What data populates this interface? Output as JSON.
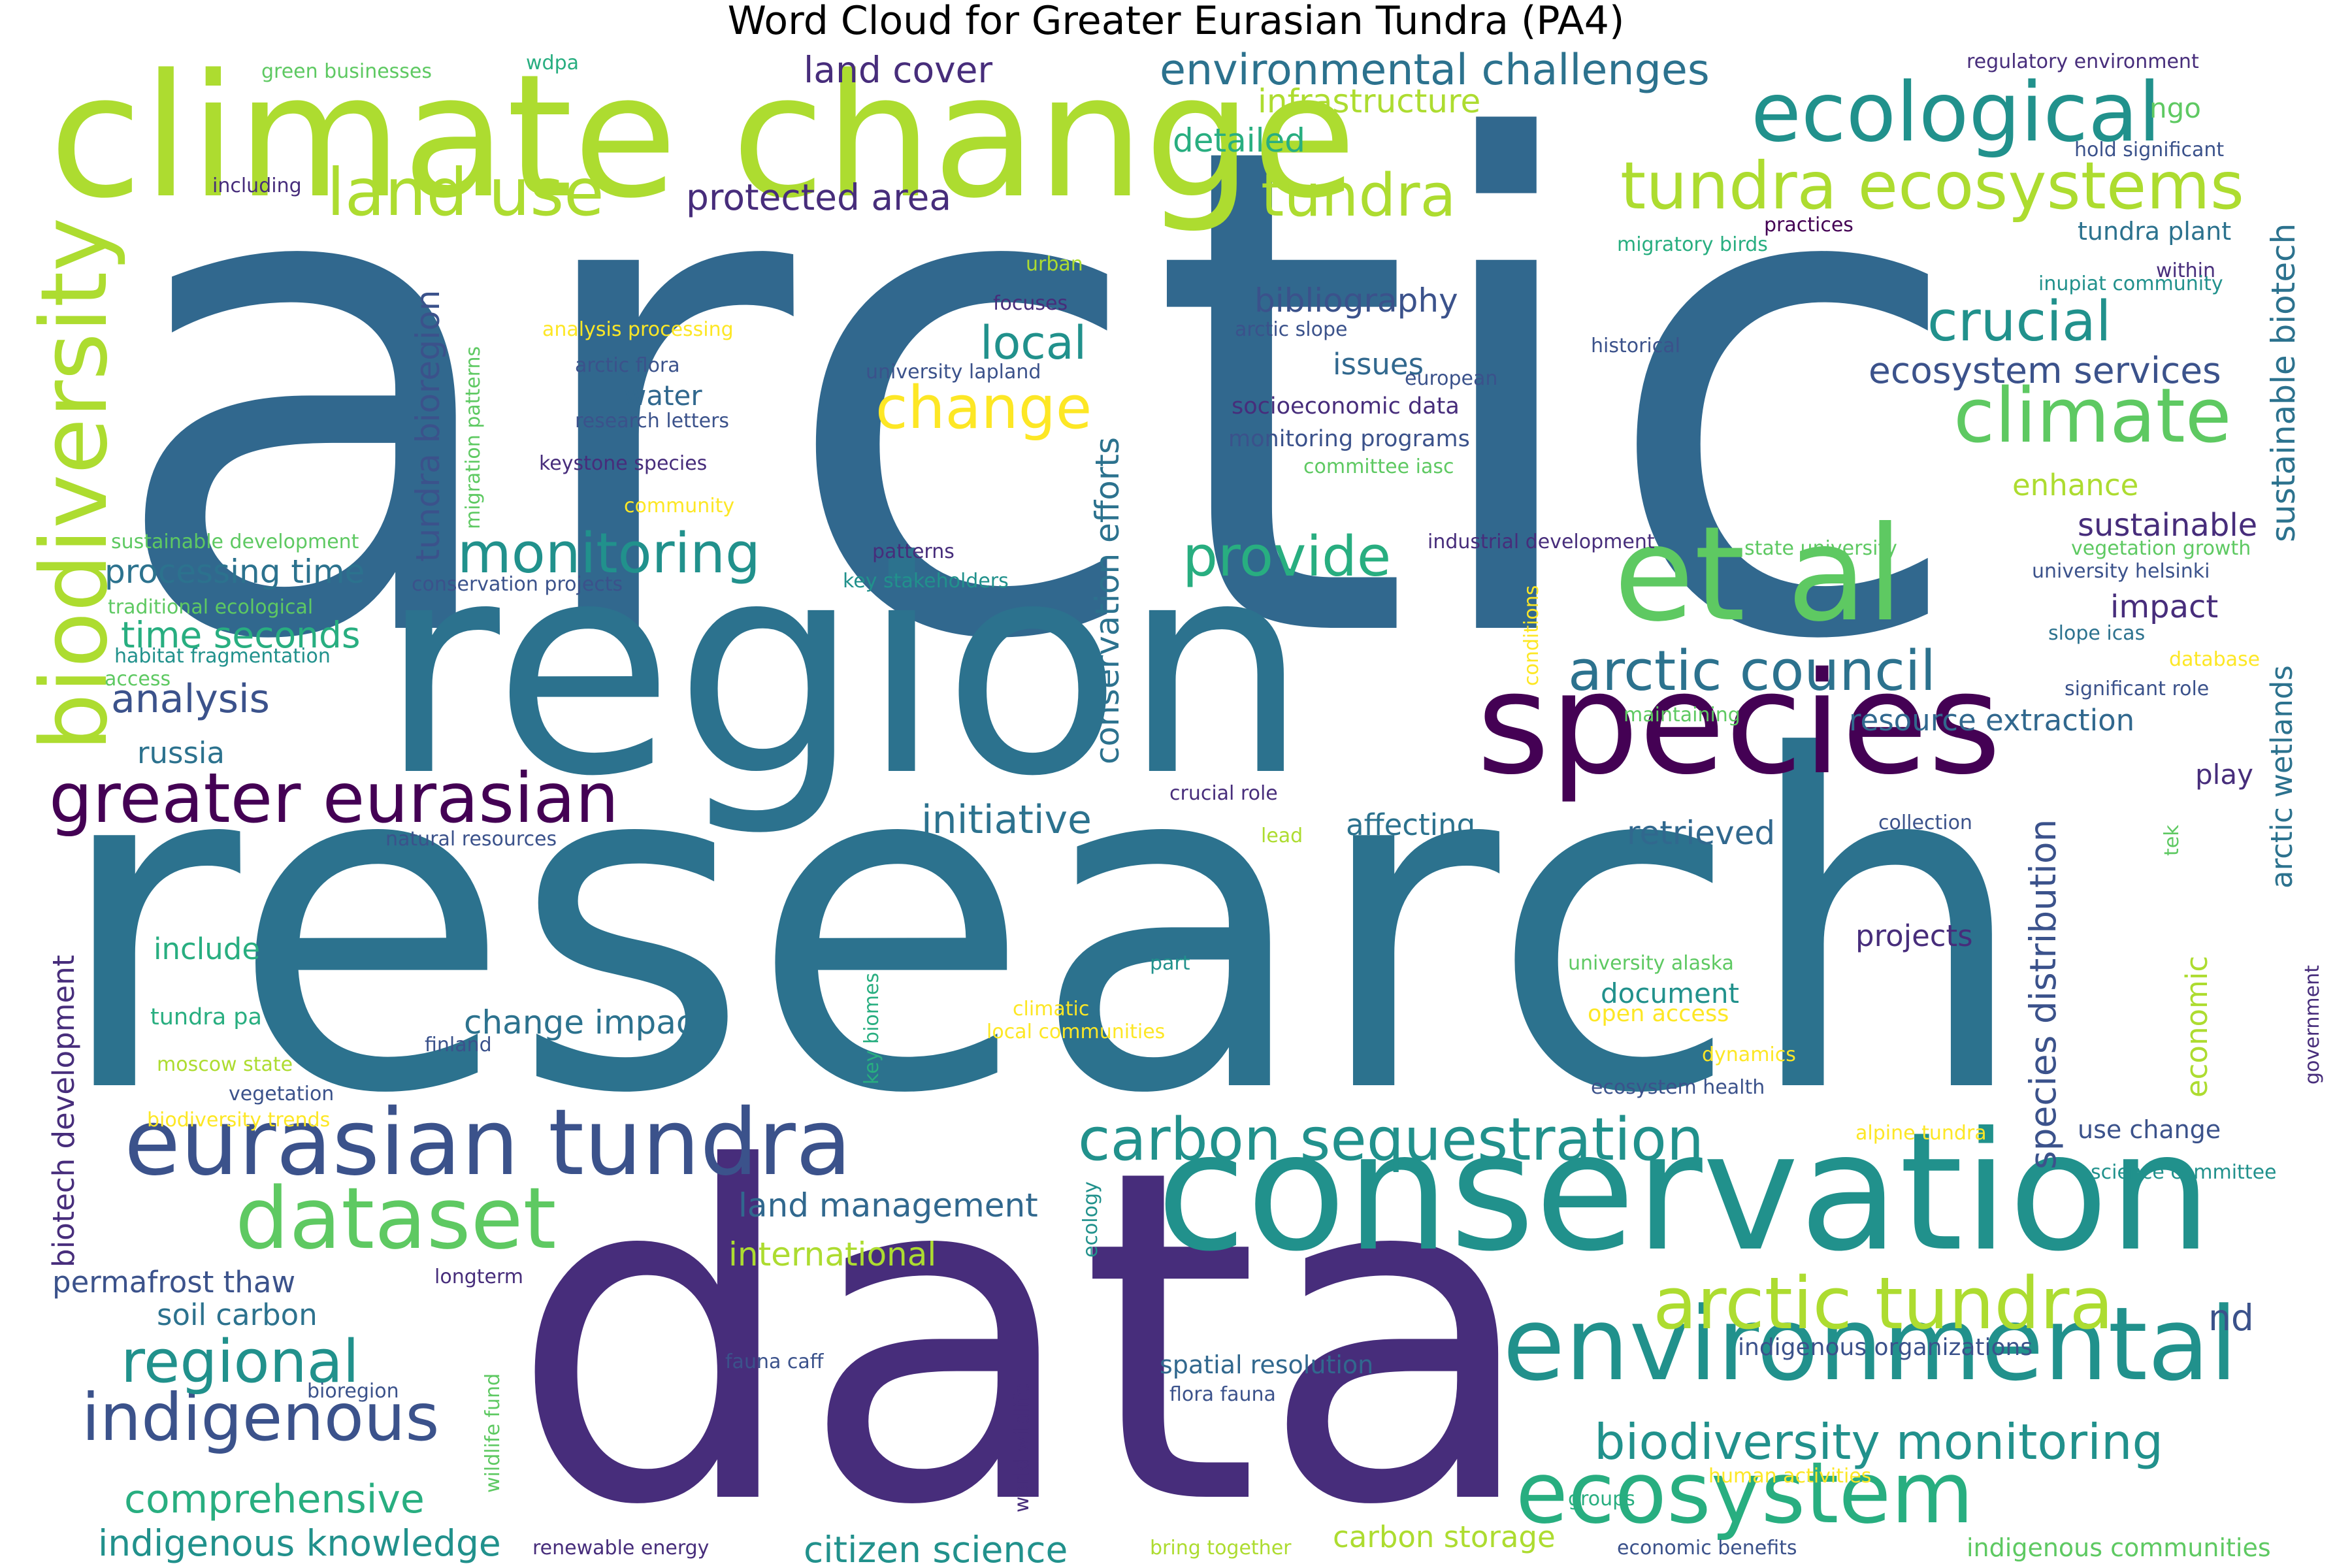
{
  "title": "Word Cloud for Greater Eurasian Tundra (PA4)",
  "palette": {
    "dark_purple": "#440154",
    "indigo": "#472d7b",
    "blue": "#3b528b",
    "steel_blue": "#31688e",
    "teal_blue": "#2c728e",
    "teal": "#21918c",
    "green_teal": "#28ae80",
    "green": "#5ec962",
    "lime": "#addc30",
    "yellow": "#fde725"
  },
  "words": [
    {
      "text": "arctic",
      "weight": 1.0,
      "color": "#31688e"
    },
    {
      "text": "research",
      "weight": 0.98,
      "color": "#2c728e"
    },
    {
      "text": "data",
      "weight": 0.9,
      "color": "#472d7b"
    },
    {
      "text": "region",
      "weight": 0.74,
      "color": "#2c728e"
    },
    {
      "text": "climate change",
      "weight": 0.45,
      "color": "#addc30"
    },
    {
      "text": "conservation",
      "weight": 0.45,
      "color": "#21918c"
    },
    {
      "text": "species",
      "weight": 0.38,
      "color": "#440154"
    },
    {
      "text": "et al",
      "weight": 0.38,
      "color": "#5ec962"
    },
    {
      "text": "environmental",
      "weight": 0.3,
      "color": "#21918c"
    },
    {
      "text": "eurasian tundra",
      "weight": 0.27,
      "color": "#3b528b"
    },
    {
      "text": "biodiversity",
      "weight": 0.27,
      "color": "#addc30"
    },
    {
      "text": "ecosystem",
      "weight": 0.25,
      "color": "#28ae80"
    },
    {
      "text": "dataset",
      "weight": 0.25,
      "color": "#5ec962"
    },
    {
      "text": "ecological",
      "weight": 0.24,
      "color": "#21918c"
    },
    {
      "text": "arctic tundra",
      "weight": 0.22,
      "color": "#addc30"
    },
    {
      "text": "climate",
      "weight": 0.22,
      "color": "#5ec962"
    },
    {
      "text": "greater eurasian",
      "weight": 0.2,
      "color": "#440154"
    },
    {
      "text": "tundra ecosystems",
      "weight": 0.2,
      "color": "#addc30"
    },
    {
      "text": "land use",
      "weight": 0.2,
      "color": "#addc30"
    },
    {
      "text": "indigenous",
      "weight": 0.2,
      "color": "#3b528b"
    },
    {
      "text": "carbon sequestration",
      "weight": 0.18,
      "color": "#21918c"
    },
    {
      "text": "regional",
      "weight": 0.18,
      "color": "#21918c"
    },
    {
      "text": "change",
      "weight": 0.17,
      "color": "#fde725"
    },
    {
      "text": "tundra",
      "weight": 0.17,
      "color": "#addc30"
    },
    {
      "text": "arctic council",
      "weight": 0.17,
      "color": "#2c728e"
    },
    {
      "text": "monitoring",
      "weight": 0.17,
      "color": "#21918c"
    },
    {
      "text": "crucial",
      "weight": 0.16,
      "color": "#21918c"
    },
    {
      "text": "provide",
      "weight": 0.16,
      "color": "#28ae80"
    },
    {
      "text": "biodiversity monitoring",
      "weight": 0.15,
      "color": "#21918c"
    },
    {
      "text": "species distribution",
      "weight": 0.14,
      "color": "#3b528b"
    },
    {
      "text": "initiative",
      "weight": 0.14,
      "color": "#2c728e"
    },
    {
      "text": "tundra bioregion",
      "weight": 0.13,
      "color": "#3b528b"
    },
    {
      "text": "environmental challenges",
      "weight": 0.13,
      "color": "#2c728e"
    },
    {
      "text": "local",
      "weight": 0.13,
      "color": "#21918c"
    },
    {
      "text": "conservation efforts",
      "weight": 0.13,
      "color": "#2c728e"
    },
    {
      "text": "analysis",
      "weight": 0.12,
      "color": "#3b528b"
    },
    {
      "text": "comprehensive",
      "weight": 0.12,
      "color": "#28ae80"
    },
    {
      "text": "citizen science",
      "weight": 0.12,
      "color": "#21918c"
    },
    {
      "text": "indigenous knowledge",
      "weight": 0.12,
      "color": "#21918c"
    },
    {
      "text": "sustainable biotech",
      "weight": 0.12,
      "color": "#2c728e"
    },
    {
      "text": "arctic wetlands",
      "weight": 0.12,
      "color": "#2c728e"
    },
    {
      "text": "ecosystem services",
      "weight": 0.12,
      "color": "#3b528b"
    },
    {
      "text": "bibliography",
      "weight": 0.12,
      "color": "#3b528b"
    },
    {
      "text": "land cover",
      "weight": 0.12,
      "color": "#472d7b"
    },
    {
      "text": "protected area",
      "weight": 0.12,
      "color": "#472d7b"
    },
    {
      "text": "processing time",
      "weight": 0.11,
      "color": "#2c728e"
    },
    {
      "text": "time seconds",
      "weight": 0.11,
      "color": "#28ae80"
    },
    {
      "text": "infrastructure",
      "weight": 0.11,
      "color": "#addc30"
    },
    {
      "text": "detailed",
      "weight": 0.11,
      "color": "#28ae80"
    },
    {
      "text": "change impacts",
      "weight": 0.11,
      "color": "#2c728e"
    },
    {
      "text": "permafrost thaw",
      "weight": 0.11,
      "color": "#3b528b"
    },
    {
      "text": "soil carbon",
      "weight": 0.11,
      "color": "#2c728e"
    },
    {
      "text": "land management",
      "weight": 0.11,
      "color": "#31688e"
    },
    {
      "text": "international",
      "weight": 0.11,
      "color": "#addc30"
    },
    {
      "text": "biotech development",
      "weight": 0.11,
      "color": "#472d7b"
    },
    {
      "text": "sustainable",
      "weight": 0.1,
      "color": "#472d7b"
    },
    {
      "text": "impact",
      "weight": 0.1,
      "color": "#472d7b"
    },
    {
      "text": "enhance",
      "weight": 0.1,
      "color": "#addc30"
    },
    {
      "text": "resource extraction",
      "weight": 0.1,
      "color": "#31688e"
    },
    {
      "text": "retrieved",
      "weight": 0.1,
      "color": "#31688e"
    },
    {
      "text": "affecting",
      "weight": 0.1,
      "color": "#2c728e"
    },
    {
      "text": "economic",
      "weight": 0.1,
      "color": "#addc30"
    },
    {
      "text": "issues",
      "weight": 0.1,
      "color": "#31688e"
    },
    {
      "text": "carbon storage",
      "weight": 0.1,
      "color": "#addc30"
    },
    {
      "text": "include",
      "weight": 0.1,
      "color": "#28ae80"
    },
    {
      "text": "water",
      "weight": 0.09,
      "color": "#31688e"
    },
    {
      "text": "russia",
      "weight": 0.09,
      "color": "#2c728e"
    },
    {
      "text": "document",
      "weight": 0.09,
      "color": "#21918c"
    },
    {
      "text": "projects",
      "weight": 0.09,
      "color": "#472d7b"
    },
    {
      "text": "play",
      "weight": 0.09,
      "color": "#472d7b"
    },
    {
      "text": "nd",
      "weight": 0.09,
      "color": "#3b528b"
    },
    {
      "text": "ngo",
      "weight": 0.09,
      "color": "#5ec962"
    },
    {
      "text": "use change",
      "weight": 0.08,
      "color": "#3b528b"
    },
    {
      "text": "tundra plant",
      "weight": 0.08,
      "color": "#2c728e"
    },
    {
      "text": "socioeconomic data",
      "weight": 0.08,
      "color": "#472d7b"
    },
    {
      "text": "monitoring programs",
      "weight": 0.08,
      "color": "#3b528b"
    },
    {
      "text": "spatial resolution",
      "weight": 0.08,
      "color": "#31688e"
    },
    {
      "text": "indigenous organizations",
      "weight": 0.08,
      "color": "#3b528b"
    },
    {
      "text": "indigenous communities",
      "weight": 0.08,
      "color": "#5ec962"
    },
    {
      "text": "open access",
      "weight": 0.07,
      "color": "#fde725"
    },
    {
      "text": "tundra pa",
      "weight": 0.07,
      "color": "#28ae80"
    },
    {
      "text": "migration patterns",
      "weight": 0.06,
      "color": "#5ec962"
    },
    {
      "text": "green businesses",
      "weight": 0.06,
      "color": "#5ec962"
    },
    {
      "text": "wdpa",
      "weight": 0.06,
      "color": "#28ae80"
    },
    {
      "text": "regulatory environment",
      "weight": 0.06,
      "color": "#472d7b"
    },
    {
      "text": "hold significant",
      "weight": 0.06,
      "color": "#3b528b"
    },
    {
      "text": "including",
      "weight": 0.06,
      "color": "#472d7b"
    },
    {
      "text": "practices",
      "weight": 0.06,
      "color": "#440154"
    },
    {
      "text": "migratory birds",
      "weight": 0.06,
      "color": "#28ae80"
    },
    {
      "text": "within",
      "weight": 0.06,
      "color": "#472d7b"
    },
    {
      "text": "inupiat community",
      "weight": 0.06,
      "color": "#21918c"
    },
    {
      "text": "urban",
      "weight": 0.06,
      "color": "#addc30"
    },
    {
      "text": "focuses",
      "weight": 0.06,
      "color": "#472d7b"
    },
    {
      "text": "analysis processing",
      "weight": 0.06,
      "color": "#fde725"
    },
    {
      "text": "arctic slope",
      "weight": 0.06,
      "color": "#3b528b"
    },
    {
      "text": "historical",
      "weight": 0.06,
      "color": "#3b528b"
    },
    {
      "text": "arctic flora",
      "weight": 0.06,
      "color": "#3b528b"
    },
    {
      "text": "university lapland",
      "weight": 0.06,
      "color": "#3b528b"
    },
    {
      "text": "european",
      "weight": 0.06,
      "color": "#3b528b"
    },
    {
      "text": "research letters",
      "weight": 0.06,
      "color": "#3b528b"
    },
    {
      "text": "keystone species",
      "weight": 0.06,
      "color": "#472d7b"
    },
    {
      "text": "committee iasc",
      "weight": 0.06,
      "color": "#5ec962"
    },
    {
      "text": "community",
      "weight": 0.06,
      "color": "#fde725"
    },
    {
      "text": "sustainable development",
      "weight": 0.06,
      "color": "#5ec962"
    },
    {
      "text": "patterns",
      "weight": 0.06,
      "color": "#472d7b"
    },
    {
      "text": "industrial development",
      "weight": 0.06,
      "color": "#472d7b"
    },
    {
      "text": "state university",
      "weight": 0.06,
      "color": "#5ec962"
    },
    {
      "text": "vegetation growth",
      "weight": 0.06,
      "color": "#5ec962"
    },
    {
      "text": "university helsinki",
      "weight": 0.06,
      "color": "#3b528b"
    },
    {
      "text": "conservation projects",
      "weight": 0.06,
      "color": "#3b528b"
    },
    {
      "text": "key stakeholders",
      "weight": 0.06,
      "color": "#21918c"
    },
    {
      "text": "traditional ecological",
      "weight": 0.06,
      "color": "#5ec962"
    },
    {
      "text": "conditions",
      "weight": 0.06,
      "color": "#fde725"
    },
    {
      "text": "slope icas",
      "weight": 0.06,
      "color": "#2c728e"
    },
    {
      "text": "habitat fragmentation",
      "weight": 0.06,
      "color": "#21918c"
    },
    {
      "text": "database",
      "weight": 0.06,
      "color": "#fde725"
    },
    {
      "text": "access",
      "weight": 0.06,
      "color": "#5ec962"
    },
    {
      "text": "maintaining",
      "weight": 0.06,
      "color": "#5ec962"
    },
    {
      "text": "significant role",
      "weight": 0.06,
      "color": "#3b528b"
    },
    {
      "text": "crucial role",
      "weight": 0.06,
      "color": "#472d7b"
    },
    {
      "text": "collection",
      "weight": 0.06,
      "color": "#3b528b"
    },
    {
      "text": "natural resources",
      "weight": 0.06,
      "color": "#3b528b"
    },
    {
      "text": "lead",
      "weight": 0.06,
      "color": "#addc30"
    },
    {
      "text": "tek",
      "weight": 0.06,
      "color": "#5ec962"
    },
    {
      "text": "part",
      "weight": 0.06,
      "color": "#21918c"
    },
    {
      "text": "university alaska",
      "weight": 0.06,
      "color": "#5ec962"
    },
    {
      "text": "key biomes",
      "weight": 0.06,
      "color": "#28ae80"
    },
    {
      "text": "climatic",
      "weight": 0.06,
      "color": "#fde725"
    },
    {
      "text": "local communities",
      "weight": 0.06,
      "color": "#fde725"
    },
    {
      "text": "finland",
      "weight": 0.06,
      "color": "#3b528b"
    },
    {
      "text": "dynamics",
      "weight": 0.06,
      "color": "#fde725"
    },
    {
      "text": "moscow state",
      "weight": 0.06,
      "color": "#addc30"
    },
    {
      "text": "government",
      "weight": 0.06,
      "color": "#472d7b"
    },
    {
      "text": "ecosystem health",
      "weight": 0.06,
      "color": "#3b528b"
    },
    {
      "text": "vegetation",
      "weight": 0.06,
      "color": "#3b528b"
    },
    {
      "text": "biodiversity trends",
      "weight": 0.06,
      "color": "#fde725"
    },
    {
      "text": "alpine tundra",
      "weight": 0.06,
      "color": "#fde725"
    },
    {
      "text": "science committee",
      "weight": 0.06,
      "color": "#21918c"
    },
    {
      "text": "ecology",
      "weight": 0.06,
      "color": "#21918c"
    },
    {
      "text": "longterm",
      "weight": 0.06,
      "color": "#472d7b"
    },
    {
      "text": "world wildlife",
      "weight": 0.06,
      "color": "#472d7b"
    },
    {
      "text": "wildlife fund",
      "weight": 0.06,
      "color": "#5ec962"
    },
    {
      "text": "fauna caff",
      "weight": 0.06,
      "color": "#3b528b"
    },
    {
      "text": "flora fauna",
      "weight": 0.06,
      "color": "#3b528b"
    },
    {
      "text": "bioregion",
      "weight": 0.06,
      "color": "#3b528b"
    },
    {
      "text": "human activities",
      "weight": 0.06,
      "color": "#fde725"
    },
    {
      "text": "groups",
      "weight": 0.06,
      "color": "#28ae80"
    },
    {
      "text": "renewable energy",
      "weight": 0.06,
      "color": "#472d7b"
    },
    {
      "text": "bring together",
      "weight": 0.06,
      "color": "#addc30"
    },
    {
      "text": "economic benefits",
      "weight": 0.06,
      "color": "#3b528b"
    }
  ]
}
